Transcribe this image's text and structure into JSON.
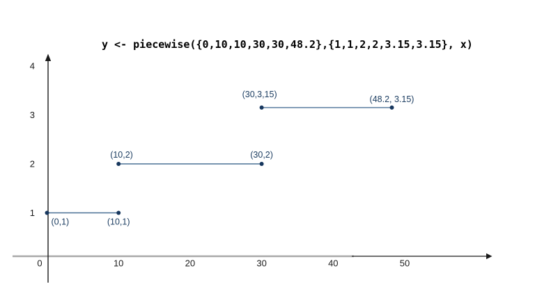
{
  "title": "y <- piecewise({0,10,10,30,30,48.2},{1,1,2,2,3.15,3.15}, x)",
  "colors": {
    "background": "#ffffff",
    "segment_line": "#4a7096",
    "point_dot": "#17375e",
    "point_label": "#1d3e62",
    "axis_black": "#1a1a1a",
    "axis_gray": "#a8a8a8",
    "tick_label": "#1a1a1a"
  },
  "chart_data": {
    "type": "line",
    "title": "y <- piecewise({0,10,10,30,30,48.2},{1,1,2,2,3.15,3.15}, x)",
    "description": "Piecewise-constant step function drawn as three horizontal segments with endpoint dots and coordinate labels",
    "xlabel": "",
    "ylabel": "",
    "xlim": [
      0,
      62
    ],
    "ylim": [
      0,
      4.3
    ],
    "x_ticks": [
      0,
      10,
      20,
      30,
      40,
      50
    ],
    "y_ticks": [
      1,
      2,
      3,
      4
    ],
    "grid": false,
    "legend": false,
    "segments": [
      {
        "points": [
          [
            0,
            1
          ],
          [
            10,
            1
          ]
        ],
        "labels": [
          "(0,1)",
          "(10,1)"
        ],
        "label_side": "below"
      },
      {
        "points": [
          [
            10,
            2
          ],
          [
            30,
            2
          ]
        ],
        "labels": [
          "(10,2)",
          "(30,2)"
        ],
        "label_side": "above"
      },
      {
        "points": [
          [
            30,
            3.15
          ],
          [
            48.2,
            3.15
          ]
        ],
        "labels": [
          "(30,3,15)",
          "(48.2, 3.15)"
        ],
        "label_side": "above"
      }
    ]
  }
}
